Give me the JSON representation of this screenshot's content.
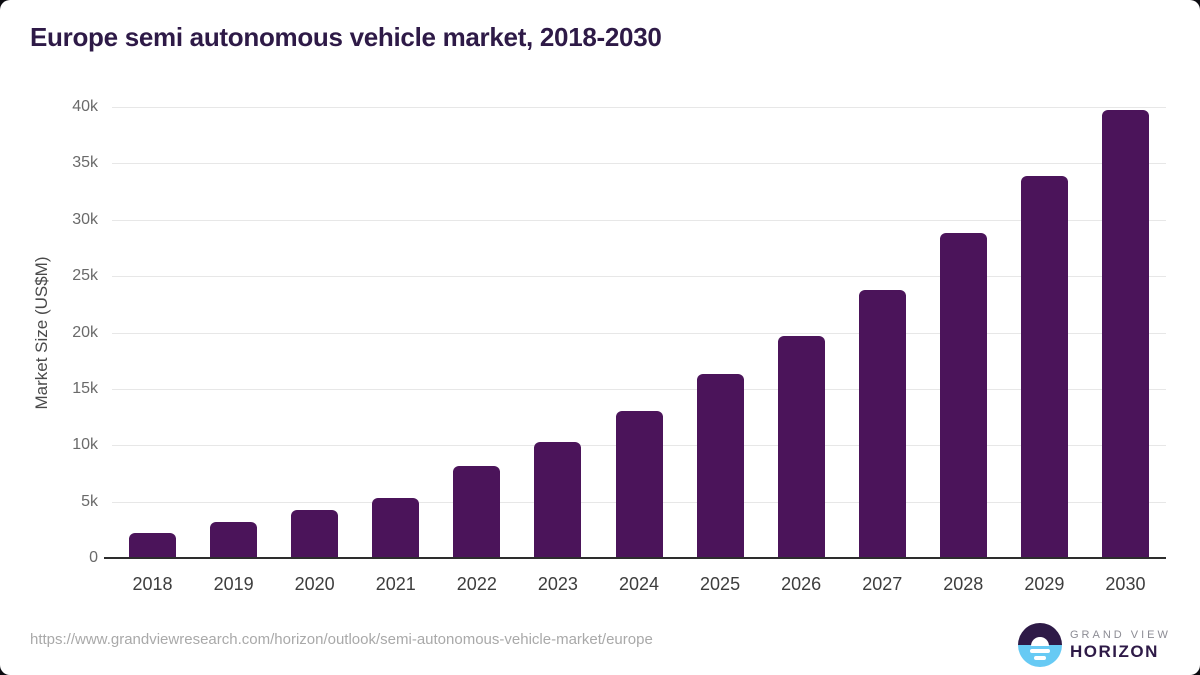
{
  "chart_data": {
    "type": "bar",
    "title": "Europe semi autonomous vehicle market, 2018-2030",
    "xlabel": "",
    "ylabel": "Market Size (US$M)",
    "categories": [
      "2018",
      "2019",
      "2020",
      "2021",
      "2022",
      "2023",
      "2024",
      "2025",
      "2026",
      "2027",
      "2028",
      "2029",
      "2030"
    ],
    "values": [
      2250,
      3200,
      4300,
      5350,
      8200,
      10300,
      13000,
      16350,
      19700,
      23800,
      28850,
      33900,
      39700
    ],
    "ylim": [
      0,
      40000
    ],
    "ytick_step": 5000,
    "ytick_labels": [
      "0",
      "5k",
      "10k",
      "15k",
      "20k",
      "25k",
      "30k",
      "35k",
      "40k"
    ],
    "grid": true,
    "legend": "none",
    "bar_color": "#4B145A"
  },
  "colors": {
    "title": "#2E1A47",
    "bar": "#4B145A",
    "gridline": "#E7E7E7",
    "axis_line": "#2D2D2D",
    "ytick_text": "#6A6A6A",
    "xtick_text": "#3D3D3D",
    "url_text": "#A9A9A9",
    "logo_purple": "#2E1A47",
    "logo_blue": "#67CAF4"
  },
  "footer": {
    "source_url": "https://www.grandviewresearch.com/horizon/outlook/semi-autonomous-vehicle-market/europe",
    "logo": {
      "line1": "GRAND VIEW",
      "line2": "HORIZON"
    }
  }
}
